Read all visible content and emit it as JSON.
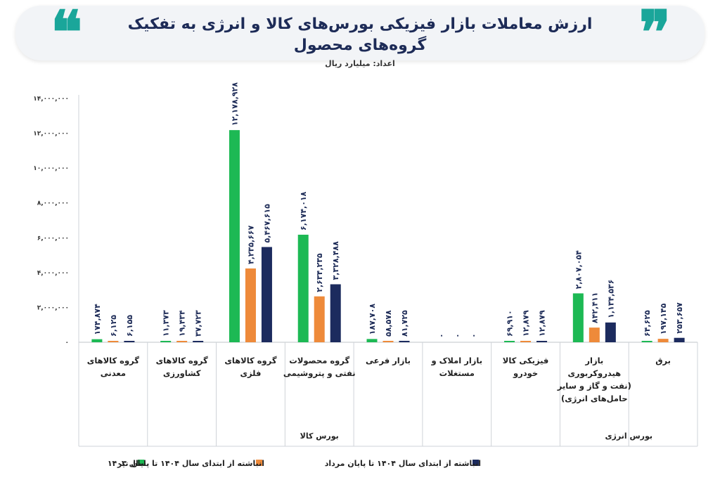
{
  "header": {
    "title": "ارزش معاملات بازار فیزیکی بورس‌های کالا و انرژی به تفکیک گروه‌های محصول",
    "unit": "اعداد: میلیارد ریال"
  },
  "colors": {
    "green": "#1db954",
    "orange": "#ee8a3a",
    "navy": "#1c2b5e",
    "title": "#1d2b57",
    "accent_quote": "#1aa69a"
  },
  "chart_data": {
    "type": "bar",
    "ylim": [
      0,
      14000000
    ],
    "yticks": [
      {
        "v": 14000000,
        "label": "۱۴,۰۰۰,۰۰۰"
      },
      {
        "v": 12000000,
        "label": "۱۲,۰۰۰,۰۰۰"
      },
      {
        "v": 10000000,
        "label": "۱۰,۰۰۰,۰۰۰"
      },
      {
        "v": 8000000,
        "label": "۸,۰۰۰,۰۰۰"
      },
      {
        "v": 6000000,
        "label": "۶,۰۰۰,۰۰۰"
      },
      {
        "v": 4000000,
        "label": "۴,۰۰۰,۰۰۰"
      },
      {
        "v": 2000000,
        "label": "۲,۰۰۰,۰۰۰"
      },
      {
        "v": 0,
        "label": "۰"
      }
    ],
    "categories": [
      [
        "گروه کالاهای",
        "معدنی"
      ],
      [
        "گروه کالاهای",
        "کشاورزی"
      ],
      [
        "گروه کالاهای",
        "فلزی"
      ],
      [
        "گروه محصولات",
        "نفتی و پتروشیمی"
      ],
      [
        "بازار فرعی"
      ],
      [
        "بازار املاک و",
        "مستغلات"
      ],
      [
        "فیزیکی کالا",
        "خودرو"
      ],
      [
        "بازار",
        "هیدروکربوری",
        "(نفت و گاز و سایر",
        "حامل‌های انرژی)"
      ],
      [
        "برق"
      ]
    ],
    "series": [
      {
        "name": "سال ۱۴۰۳",
        "color": "#1db954",
        "values": [
          174874,
          11373,
          12178928,
          6174018,
          187708,
          0,
          69910,
          2807054,
          64625
        ],
        "labels": [
          "۱۷۴,۸۷۴",
          "۱۱,۳۷۳",
          "۱۲,۱۷۸,۹۲۸",
          "۶,۱۷۴,۰۱۸",
          "۱۸۷,۷۰۸",
          "۰",
          "۶۹,۹۱۰",
          "۲,۸۰۷,۰۵۴",
          "۶۴,۶۲۵"
        ]
      },
      {
        "name": "انباشته از ابتدای سال ۱۴۰۴ تا پایان تیر",
        "color": "#ee8a3a",
        "values": [
          6125,
          19434,
          4235667,
          2634235,
          58578,
          0,
          12879,
          842411,
          197145
        ],
        "labels": [
          "۶,۱۲۵",
          "۱۹,۴۳۴",
          "۴,۲۳۵,۶۶۷",
          "۲,۶۳۴,۲۳۵",
          "۵۸,۵۷۸",
          "۰",
          "۱۲,۸۷۹",
          "۸۴۲,۴۱۱",
          "۱۹۷,۱۴۵"
        ]
      },
      {
        "name": "انباشته از ابتدای سال ۱۴۰۴ تا پایان مرداد",
        "color": "#1c2b5e",
        "values": [
          6155,
          37723,
          5467615,
          3328488,
          81725,
          0,
          12879,
          1134536,
          253657
        ],
        "labels": [
          "۶,۱۵۵",
          "۳۷,۷۲۳",
          "۵,۴۶۷,۶۱۵",
          "۳,۳۲۸,۴۸۸",
          "۸۱,۷۲۵",
          "۰",
          "۱۲,۸۷۹",
          "۱,۱۳۴,۵۳۶",
          "۲۵۳,۶۵۷"
        ]
      }
    ],
    "groups": [
      {
        "label": "بورس کالا",
        "from": 0,
        "to": 6
      },
      {
        "label": "بورس انرژی",
        "from": 7,
        "to": 8
      }
    ],
    "legend": "bottom"
  }
}
